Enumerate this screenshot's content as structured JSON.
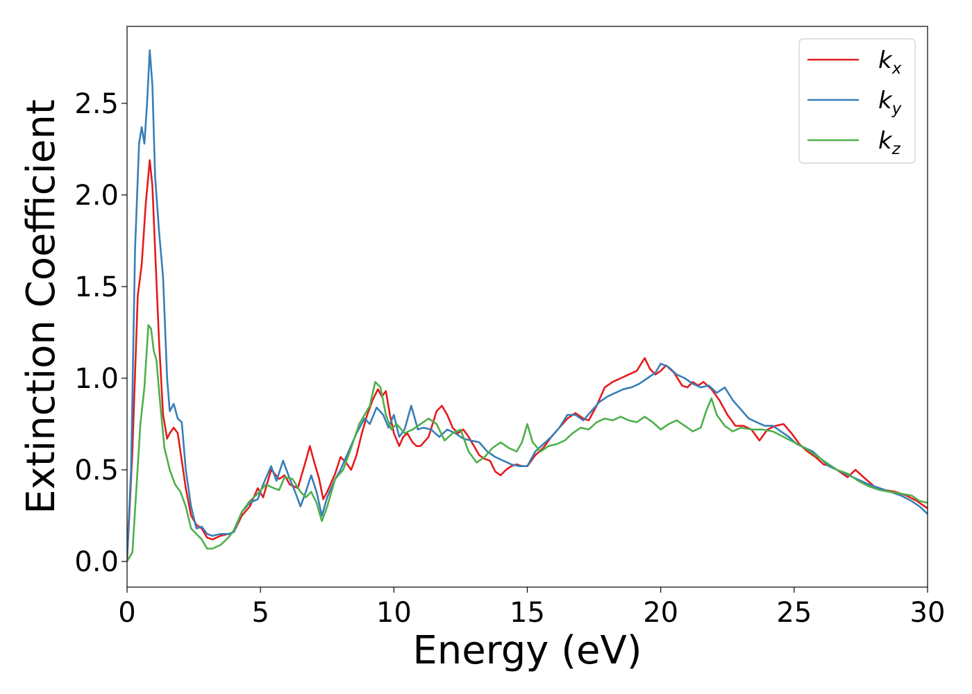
{
  "chart_data": {
    "type": "line",
    "xlabel": "Energy (eV)",
    "ylabel": "Extinction Coefficient",
    "xlim": [
      0,
      30
    ],
    "ylim": [
      -0.14,
      2.92
    ],
    "xticks": [
      0,
      5,
      10,
      15,
      20,
      25,
      30
    ],
    "xtick_labels": [
      "0",
      "5",
      "10",
      "15",
      "20",
      "25",
      "30"
    ],
    "yticks": [
      0.0,
      0.5,
      1.0,
      1.5,
      2.0,
      2.5
    ],
    "ytick_labels": [
      "0.0",
      "0.5",
      "1.0",
      "1.5",
      "2.0",
      "2.5"
    ],
    "grid": false,
    "legend": "top-right",
    "series": [
      {
        "name": "k",
        "sub": "x",
        "color": "#e41a1c",
        "x": [
          0,
          0.2,
          0.4,
          0.55,
          0.7,
          0.85,
          0.95,
          1.05,
          1.2,
          1.35,
          1.5,
          1.6,
          1.75,
          1.9,
          2.05,
          2.2,
          2.4,
          2.6,
          2.8,
          3.0,
          3.2,
          3.5,
          3.8,
          4.0,
          4.3,
          4.6,
          4.9,
          5.1,
          5.4,
          5.7,
          5.9,
          6.1,
          6.4,
          6.7,
          6.85,
          7.0,
          7.2,
          7.35,
          7.5,
          7.8,
          8.0,
          8.2,
          8.4,
          8.6,
          8.8,
          9.0,
          9.2,
          9.4,
          9.55,
          9.7,
          9.85,
          10.0,
          10.2,
          10.35,
          10.5,
          10.7,
          10.85,
          11.0,
          11.3,
          11.6,
          11.8,
          12.0,
          12.2,
          12.4,
          12.6,
          12.8,
          13.0,
          13.2,
          13.4,
          13.6,
          13.8,
          14.0,
          14.2,
          14.4,
          14.6,
          14.8,
          15.0,
          15.3,
          15.6,
          15.9,
          16.2,
          16.5,
          16.8,
          17.1,
          17.3,
          17.6,
          17.9,
          18.2,
          18.5,
          18.8,
          19.1,
          19.4,
          19.6,
          19.8,
          20.0,
          20.2,
          20.5,
          20.8,
          21.0,
          21.2,
          21.4,
          21.6,
          21.9,
          22.2,
          22.5,
          22.8,
          23.1,
          23.4,
          23.7,
          24.0,
          24.3,
          24.6,
          24.9,
          25.2,
          25.5,
          25.8,
          26.1,
          26.4,
          26.7,
          27.0,
          27.3,
          27.6,
          28.0,
          28.4,
          28.8,
          29.2,
          29.6,
          30.0
        ],
        "y": [
          0.0,
          0.6,
          1.45,
          1.62,
          1.95,
          2.19,
          2.05,
          1.7,
          1.2,
          0.8,
          0.67,
          0.7,
          0.73,
          0.7,
          0.55,
          0.4,
          0.25,
          0.2,
          0.18,
          0.13,
          0.12,
          0.14,
          0.15,
          0.16,
          0.25,
          0.3,
          0.4,
          0.35,
          0.5,
          0.45,
          0.47,
          0.42,
          0.4,
          0.55,
          0.63,
          0.55,
          0.45,
          0.34,
          0.38,
          0.48,
          0.57,
          0.54,
          0.5,
          0.58,
          0.7,
          0.8,
          0.88,
          0.94,
          0.9,
          0.93,
          0.8,
          0.7,
          0.63,
          0.68,
          0.7,
          0.65,
          0.63,
          0.63,
          0.68,
          0.82,
          0.85,
          0.8,
          0.73,
          0.7,
          0.72,
          0.68,
          0.63,
          0.58,
          0.56,
          0.55,
          0.49,
          0.47,
          0.5,
          0.52,
          0.53,
          0.52,
          0.52,
          0.58,
          0.62,
          0.68,
          0.73,
          0.78,
          0.81,
          0.78,
          0.77,
          0.85,
          0.95,
          0.98,
          1.0,
          1.02,
          1.04,
          1.11,
          1.05,
          1.02,
          1.04,
          1.07,
          1.03,
          0.96,
          0.95,
          0.98,
          0.96,
          0.98,
          0.94,
          0.88,
          0.8,
          0.74,
          0.74,
          0.72,
          0.66,
          0.72,
          0.74,
          0.75,
          0.7,
          0.64,
          0.6,
          0.57,
          0.53,
          0.52,
          0.49,
          0.46,
          0.5,
          0.46,
          0.41,
          0.39,
          0.38,
          0.36,
          0.33,
          0.29
        ]
      },
      {
        "name": "k",
        "sub": "y",
        "color": "#377eb8",
        "x": [
          0,
          0.15,
          0.3,
          0.45,
          0.55,
          0.65,
          0.75,
          0.85,
          0.95,
          1.05,
          1.2,
          1.35,
          1.5,
          1.6,
          1.75,
          1.9,
          2.05,
          2.2,
          2.4,
          2.6,
          2.8,
          3.0,
          3.2,
          3.5,
          3.8,
          4.0,
          4.3,
          4.6,
          4.9,
          5.1,
          5.4,
          5.6,
          5.85,
          6.1,
          6.3,
          6.5,
          6.7,
          6.9,
          7.1,
          7.3,
          7.5,
          7.8,
          8.0,
          8.3,
          8.6,
          8.9,
          9.1,
          9.35,
          9.6,
          9.8,
          10.0,
          10.2,
          10.4,
          10.65,
          10.9,
          11.1,
          11.4,
          11.7,
          12.0,
          12.3,
          12.6,
          12.9,
          13.2,
          13.5,
          13.8,
          14.1,
          14.4,
          14.7,
          15.0,
          15.3,
          15.6,
          15.9,
          16.2,
          16.5,
          16.8,
          17.1,
          17.4,
          17.7,
          18.0,
          18.3,
          18.6,
          18.9,
          19.2,
          19.5,
          19.8,
          20.0,
          20.3,
          20.6,
          20.9,
          21.2,
          21.5,
          21.8,
          22.1,
          22.4,
          22.7,
          23.0,
          23.3,
          23.6,
          23.9,
          24.2,
          24.5,
          24.8,
          25.1,
          25.4,
          25.7,
          26.0,
          26.3,
          26.6,
          26.9,
          27.2,
          27.5,
          27.8,
          28.2,
          28.6,
          29.0,
          29.4,
          29.7,
          30.0
        ],
        "y": [
          0.02,
          0.5,
          1.7,
          2.28,
          2.37,
          2.28,
          2.5,
          2.79,
          2.6,
          2.1,
          1.8,
          1.55,
          1.0,
          0.82,
          0.86,
          0.78,
          0.76,
          0.5,
          0.3,
          0.18,
          0.19,
          0.15,
          0.14,
          0.15,
          0.15,
          0.16,
          0.27,
          0.32,
          0.34,
          0.42,
          0.52,
          0.44,
          0.55,
          0.45,
          0.38,
          0.3,
          0.38,
          0.47,
          0.38,
          0.25,
          0.35,
          0.45,
          0.5,
          0.6,
          0.7,
          0.78,
          0.75,
          0.84,
          0.8,
          0.73,
          0.8,
          0.68,
          0.72,
          0.85,
          0.72,
          0.73,
          0.72,
          0.68,
          0.72,
          0.7,
          0.67,
          0.66,
          0.65,
          0.6,
          0.57,
          0.55,
          0.53,
          0.52,
          0.52,
          0.6,
          0.64,
          0.68,
          0.73,
          0.8,
          0.8,
          0.77,
          0.82,
          0.87,
          0.9,
          0.92,
          0.94,
          0.95,
          0.97,
          1.0,
          1.03,
          1.08,
          1.06,
          1.02,
          1.0,
          0.97,
          0.95,
          0.96,
          0.92,
          0.95,
          0.88,
          0.83,
          0.78,
          0.76,
          0.74,
          0.74,
          0.71,
          0.68,
          0.64,
          0.62,
          0.6,
          0.56,
          0.52,
          0.5,
          0.48,
          0.46,
          0.44,
          0.42,
          0.4,
          0.38,
          0.36,
          0.33,
          0.3,
          0.26
        ]
      },
      {
        "name": "k",
        "sub": "z",
        "color": "#4daf4a",
        "x": [
          0,
          0.2,
          0.35,
          0.5,
          0.65,
          0.8,
          0.9,
          1.0,
          1.1,
          1.25,
          1.4,
          1.6,
          1.8,
          2.0,
          2.2,
          2.4,
          2.6,
          2.8,
          3.0,
          3.2,
          3.5,
          3.8,
          4.0,
          4.3,
          4.6,
          4.9,
          5.2,
          5.5,
          5.7,
          5.9,
          6.2,
          6.5,
          6.7,
          6.9,
          7.1,
          7.3,
          7.5,
          7.8,
          8.1,
          8.4,
          8.7,
          8.9,
          9.1,
          9.3,
          9.5,
          9.7,
          9.9,
          10.1,
          10.4,
          10.7,
          11.0,
          11.3,
          11.6,
          11.9,
          12.2,
          12.5,
          12.8,
          13.1,
          13.4,
          13.7,
          14.0,
          14.3,
          14.6,
          14.8,
          15.0,
          15.2,
          15.5,
          15.8,
          16.1,
          16.4,
          16.7,
          17.0,
          17.3,
          17.6,
          17.9,
          18.2,
          18.5,
          18.8,
          19.1,
          19.4,
          19.7,
          20.0,
          20.3,
          20.6,
          20.9,
          21.2,
          21.5,
          21.7,
          21.9,
          22.1,
          22.4,
          22.7,
          23.0,
          23.4,
          23.8,
          24.2,
          24.6,
          25.0,
          25.4,
          25.8,
          26.2,
          26.6,
          27.0,
          27.4,
          27.8,
          28.2,
          28.6,
          29.0,
          29.4,
          29.7,
          30.0
        ],
        "y": [
          0.0,
          0.05,
          0.4,
          0.75,
          0.95,
          1.29,
          1.27,
          1.15,
          1.1,
          0.85,
          0.62,
          0.5,
          0.42,
          0.38,
          0.3,
          0.18,
          0.15,
          0.12,
          0.07,
          0.07,
          0.09,
          0.13,
          0.17,
          0.27,
          0.33,
          0.37,
          0.42,
          0.4,
          0.39,
          0.46,
          0.45,
          0.38,
          0.35,
          0.38,
          0.32,
          0.22,
          0.3,
          0.45,
          0.5,
          0.62,
          0.75,
          0.8,
          0.85,
          0.98,
          0.95,
          0.8,
          0.72,
          0.75,
          0.7,
          0.72,
          0.75,
          0.78,
          0.75,
          0.66,
          0.7,
          0.72,
          0.6,
          0.54,
          0.57,
          0.62,
          0.65,
          0.62,
          0.6,
          0.65,
          0.75,
          0.65,
          0.6,
          0.63,
          0.64,
          0.66,
          0.7,
          0.73,
          0.72,
          0.76,
          0.78,
          0.77,
          0.79,
          0.77,
          0.76,
          0.79,
          0.76,
          0.72,
          0.75,
          0.77,
          0.74,
          0.71,
          0.73,
          0.82,
          0.89,
          0.8,
          0.74,
          0.71,
          0.73,
          0.72,
          0.72,
          0.71,
          0.68,
          0.65,
          0.62,
          0.58,
          0.54,
          0.5,
          0.48,
          0.44,
          0.41,
          0.39,
          0.38,
          0.37,
          0.36,
          0.33,
          0.32
        ]
      }
    ]
  }
}
